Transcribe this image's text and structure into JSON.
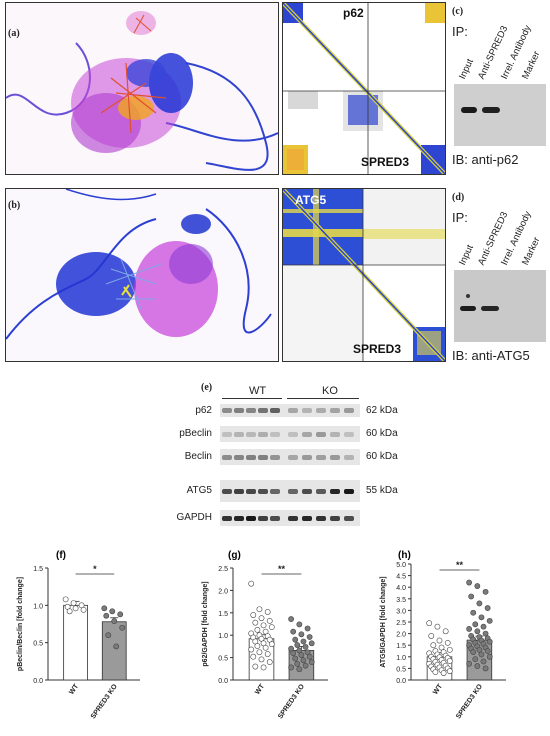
{
  "panels": {
    "a": {
      "letter": "(a)",
      "map_top_label": "p62",
      "map_bottom_label": "SPRED3"
    },
    "b": {
      "letter": "(b)",
      "map_top_label": "ATG5",
      "map_bottom_label": "SPRED3"
    },
    "c": {
      "letter": "(c)",
      "ip_label": "IP:",
      "lanes": [
        "Input",
        "Anti-SPRED3",
        "Irrel. Antibody",
        "Marker"
      ],
      "ib_label": "IB: anti-p62"
    },
    "d": {
      "letter": "(d)",
      "ip_label": "IP:",
      "lanes": [
        "Input",
        "Anti-SPRED3",
        "Irrel. Antibody",
        "Marker"
      ],
      "ib_label": "IB: anti-ATG5"
    },
    "e": {
      "letter": "(e)",
      "groups": [
        "WT",
        "KO"
      ],
      "rows": [
        {
          "label": "p62",
          "kda": "62 kDa"
        },
        {
          "label": "pBeclin",
          "kda": "60 kDa"
        },
        {
          "label": "Beclin",
          "kda": "60 kDa"
        },
        {
          "label": "ATG5",
          "kda": "55 kDa"
        },
        {
          "label": "GAPDH",
          "kda": ""
        }
      ]
    }
  },
  "chart_data": [
    {
      "panel": "(f)",
      "type": "bar",
      "categories": [
        "WT",
        "SPRED3 KO"
      ],
      "values": [
        1.0,
        0.78
      ],
      "ylabel": "pBeclin/Beclin [fold change]",
      "ylim": [
        0,
        1.5
      ],
      "yticks": [
        "0.0",
        "0.5",
        "1.0",
        "1.5"
      ],
      "significance": "*",
      "points": [
        [
          1.08,
          1.03,
          1.0,
          0.98,
          0.96,
          0.94,
          0.92
        ],
        [
          0.96,
          0.92,
          0.88,
          0.86,
          0.79,
          0.7,
          0.6,
          0.45
        ]
      ]
    },
    {
      "panel": "(g)",
      "type": "bar",
      "categories": [
        "WT",
        "SPRED3 KO"
      ],
      "values": [
        0.92,
        0.66
      ],
      "ylabel": "p62/GAPDH [fold change]",
      "ylim": [
        0,
        2.5
      ],
      "yticks": [
        "0.0",
        "0.5",
        "1.0",
        "1.5",
        "2.0",
        "2.5"
      ],
      "significance": "**",
      "points": [
        [
          2.15,
          1.58,
          1.52,
          1.45,
          1.38,
          1.32,
          1.28,
          1.22,
          1.18,
          1.12,
          1.08,
          1.04,
          1.0,
          0.98,
          0.95,
          0.92,
          0.9,
          0.86,
          0.82,
          0.8,
          0.76,
          0.72,
          0.68,
          0.62,
          0.58,
          0.52,
          0.46,
          0.4,
          0.3,
          0.28
        ],
        [
          1.36,
          1.24,
          1.15,
          1.08,
          1.02,
          0.96,
          0.9,
          0.86,
          0.82,
          0.78,
          0.74,
          0.7,
          0.66,
          0.62,
          0.6,
          0.56,
          0.52,
          0.48,
          0.44,
          0.4,
          0.36,
          0.32,
          0.28,
          0.24
        ]
      ]
    },
    {
      "panel": "(h)",
      "type": "bar",
      "categories": [
        "WT",
        "SPRED3 KO"
      ],
      "values": [
        1.0,
        1.72
      ],
      "ylabel": "ATG5/GAPDH [fold change]",
      "ylim": [
        0,
        5
      ],
      "yticks": [
        "0.0",
        "0.5",
        "1.0",
        "1.5",
        "2.0",
        "2.5",
        "3.0",
        "3.5",
        "4.0",
        "4.5",
        "5.0"
      ],
      "significance": "**",
      "points": [
        [
          2.45,
          2.3,
          2.1,
          1.9,
          1.7,
          1.6,
          1.5,
          1.4,
          1.3,
          1.25,
          1.2,
          1.15,
          1.1,
          1.05,
          1.0,
          0.98,
          0.95,
          0.9,
          0.86,
          0.82,
          0.78,
          0.74,
          0.7,
          0.66,
          0.62,
          0.58,
          0.54,
          0.5,
          0.46,
          0.42,
          0.38,
          0.34,
          0.3
        ],
        [
          4.2,
          4.05,
          3.8,
          3.6,
          3.3,
          3.1,
          2.9,
          2.7,
          2.55,
          2.4,
          2.3,
          2.2,
          2.1,
          2.0,
          1.9,
          1.85,
          1.8,
          1.75,
          1.7,
          1.65,
          1.6,
          1.55,
          1.5,
          1.45,
          1.4,
          1.35,
          1.3,
          1.25,
          1.2,
          1.1,
          1.0,
          0.9,
          0.8,
          0.7,
          0.6,
          0.5
        ]
      ]
    }
  ]
}
